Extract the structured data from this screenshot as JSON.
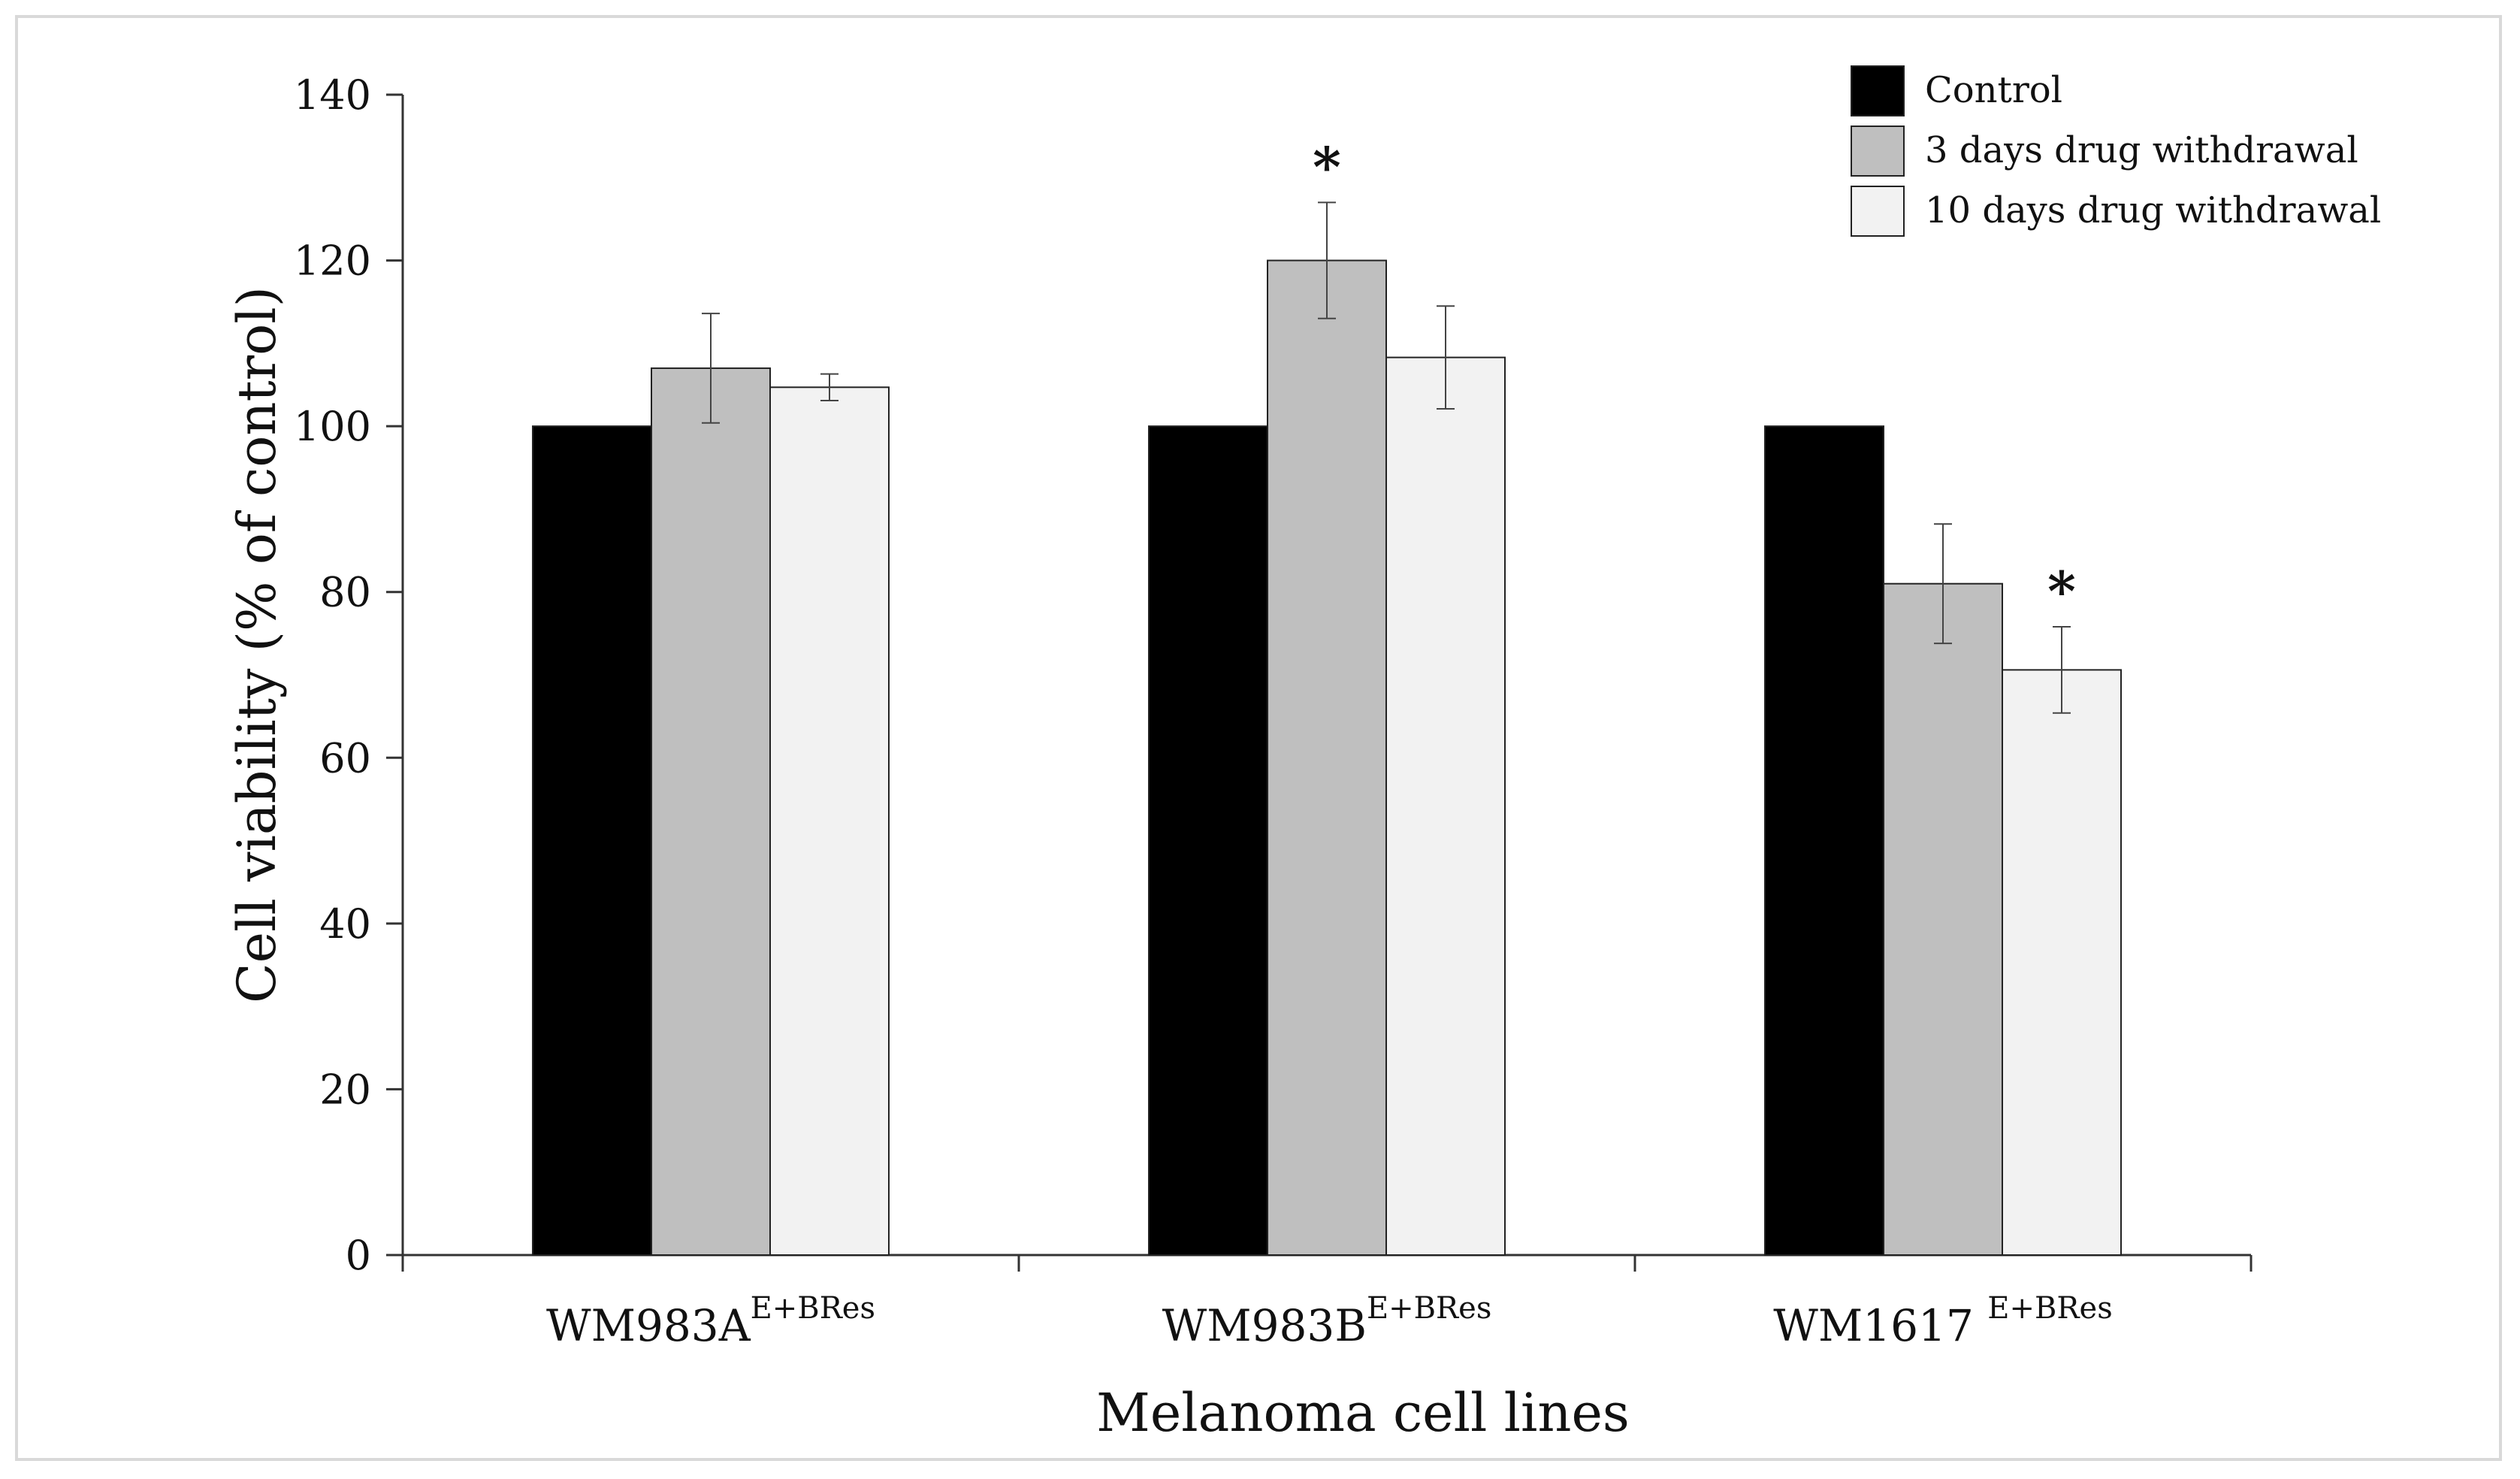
{
  "chart_data": {
    "type": "bar",
    "xlabel": "Melanoma cell lines",
    "ylabel": "Cell viability (% of control)",
    "ylim": [
      0,
      140
    ],
    "yticks": [
      "0",
      "20",
      "40",
      "60",
      "80",
      "100",
      "120",
      "140"
    ],
    "grid": false,
    "legend_position": "top-right",
    "categories": [
      {
        "name": "WM983A",
        "sup": "E+BRes"
      },
      {
        "name": "WM983B",
        "sup": "E+BRes"
      },
      {
        "name": "WM1617 ",
        "sup": "E+BRes"
      }
    ],
    "series": [
      {
        "name": "Control",
        "color": "#000000",
        "values": [
          100,
          100,
          100
        ],
        "errors": [
          0,
          0,
          0
        ],
        "significant": [
          false,
          false,
          false
        ]
      },
      {
        "name": "3 days drug withdrawal",
        "color": "#bfbfbf",
        "values": [
          107,
          120,
          81
        ],
        "errors": [
          6.6,
          7,
          7.2
        ],
        "significant": [
          false,
          true,
          false
        ]
      },
      {
        "name": "10 days drug withdrawal",
        "color": "#f2f2f2",
        "values": [
          104.7,
          108.3,
          70.6
        ],
        "errors": [
          1.6,
          6.2,
          5.2
        ],
        "significant": [
          false,
          false,
          true
        ]
      }
    ],
    "significance_marker": "*"
  }
}
